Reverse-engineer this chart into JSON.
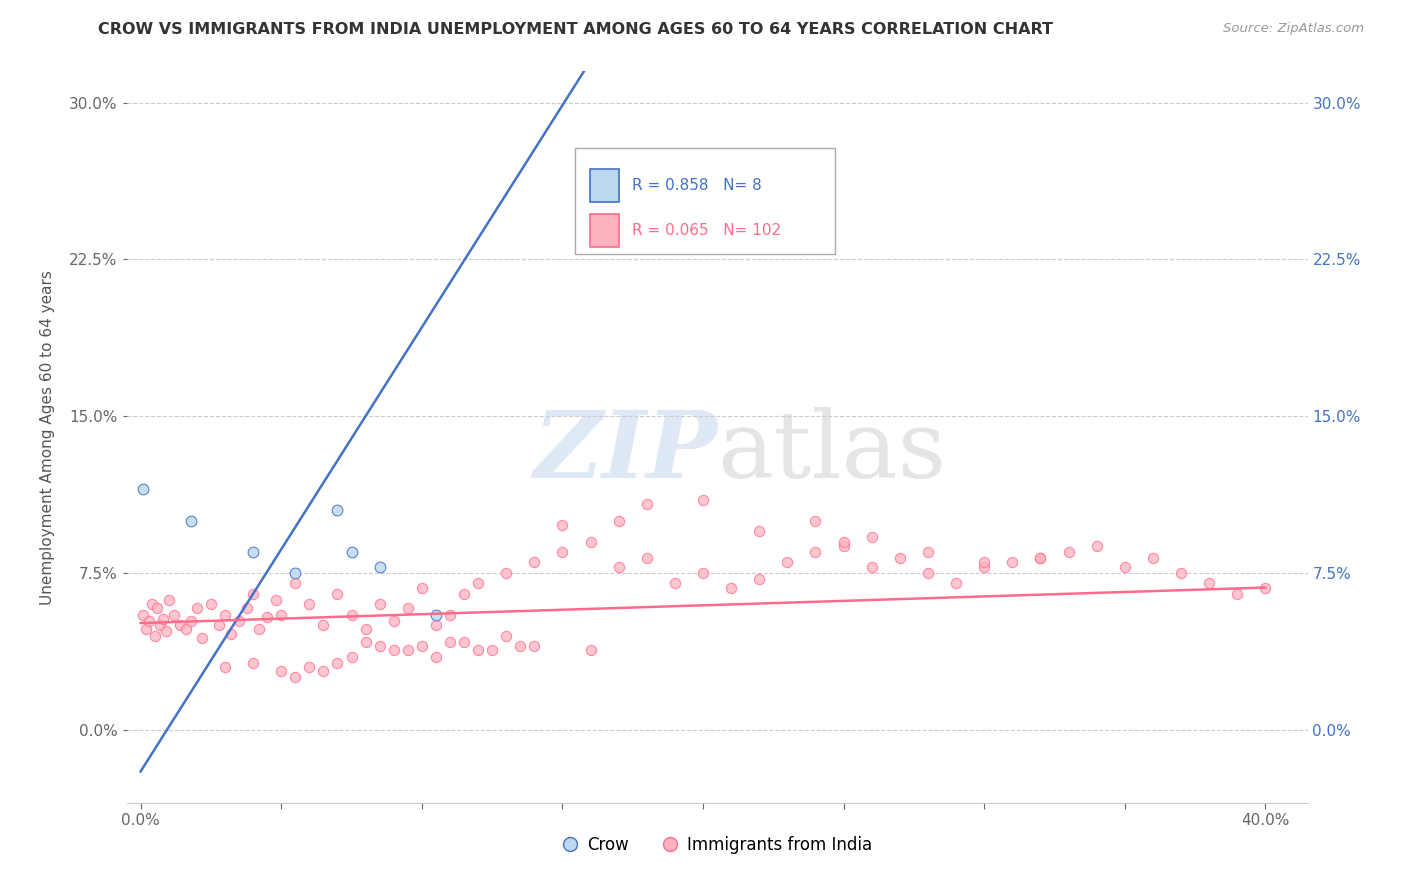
{
  "title": "CROW VS IMMIGRANTS FROM INDIA UNEMPLOYMENT AMONG AGES 60 TO 64 YEARS CORRELATION CHART",
  "source": "Source: ZipAtlas.com",
  "ylabel": "Unemployment Among Ages 60 to 64 years",
  "crow_R": "0.858",
  "crow_N": "8",
  "india_R": "0.065",
  "india_N": "102",
  "crow_color": "#4472C4",
  "crow_fill": "#BDD7EE",
  "india_color": "#FF6B8A",
  "india_fill": "#FFB3C1",
  "background_color": "#FFFFFF",
  "crow_scatter_x": [
    0.001,
    0.018,
    0.04,
    0.055,
    0.07,
    0.075,
    0.085,
    0.105
  ],
  "crow_scatter_y": [
    0.115,
    0.1,
    0.085,
    0.075,
    0.105,
    0.085,
    0.078,
    0.055
  ],
  "crow_line_x": [
    0.0,
    0.16
  ],
  "crow_line_y": [
    -0.02,
    0.32
  ],
  "india_line_x": [
    0.0,
    0.4
  ],
  "india_line_y": [
    0.051,
    0.068
  ],
  "india_scatter_x": [
    0.001,
    0.002,
    0.003,
    0.004,
    0.005,
    0.006,
    0.007,
    0.008,
    0.009,
    0.01,
    0.012,
    0.014,
    0.016,
    0.018,
    0.02,
    0.022,
    0.025,
    0.028,
    0.03,
    0.032,
    0.035,
    0.038,
    0.04,
    0.042,
    0.045,
    0.048,
    0.05,
    0.055,
    0.06,
    0.065,
    0.07,
    0.075,
    0.08,
    0.085,
    0.09,
    0.095,
    0.1,
    0.105,
    0.11,
    0.115,
    0.12,
    0.13,
    0.14,
    0.15,
    0.16,
    0.17,
    0.18,
    0.19,
    0.2,
    0.21,
    0.22,
    0.23,
    0.24,
    0.25,
    0.26,
    0.27,
    0.28,
    0.29,
    0.3,
    0.31,
    0.32,
    0.33,
    0.34,
    0.35,
    0.36,
    0.37,
    0.38,
    0.39,
    0.4,
    0.22,
    0.24,
    0.26,
    0.18,
    0.2,
    0.15,
    0.17,
    0.25,
    0.28,
    0.3,
    0.32,
    0.08,
    0.09,
    0.1,
    0.11,
    0.12,
    0.13,
    0.14,
    0.16,
    0.03,
    0.04,
    0.05,
    0.06,
    0.07,
    0.055,
    0.065,
    0.075,
    0.085,
    0.095,
    0.105,
    0.115,
    0.125,
    0.135
  ],
  "india_scatter_y": [
    0.055,
    0.048,
    0.052,
    0.06,
    0.045,
    0.058,
    0.05,
    0.053,
    0.047,
    0.062,
    0.055,
    0.05,
    0.048,
    0.052,
    0.058,
    0.044,
    0.06,
    0.05,
    0.055,
    0.046,
    0.052,
    0.058,
    0.065,
    0.048,
    0.054,
    0.062,
    0.055,
    0.07,
    0.06,
    0.05,
    0.065,
    0.055,
    0.048,
    0.06,
    0.052,
    0.058,
    0.068,
    0.05,
    0.055,
    0.065,
    0.07,
    0.075,
    0.08,
    0.085,
    0.09,
    0.078,
    0.082,
    0.07,
    0.075,
    0.068,
    0.072,
    0.08,
    0.085,
    0.088,
    0.078,
    0.082,
    0.075,
    0.07,
    0.078,
    0.08,
    0.082,
    0.085,
    0.088,
    0.078,
    0.082,
    0.075,
    0.07,
    0.065,
    0.068,
    0.095,
    0.1,
    0.092,
    0.108,
    0.11,
    0.098,
    0.1,
    0.09,
    0.085,
    0.08,
    0.082,
    0.042,
    0.038,
    0.04,
    0.042,
    0.038,
    0.045,
    0.04,
    0.038,
    0.03,
    0.032,
    0.028,
    0.03,
    0.032,
    0.025,
    0.028,
    0.035,
    0.04,
    0.038,
    0.035,
    0.042,
    0.038,
    0.04
  ],
  "xlim": [
    -0.005,
    0.415
  ],
  "ylim": [
    -0.035,
    0.315
  ],
  "yticks": [
    0.0,
    0.075,
    0.15,
    0.225,
    0.3
  ],
  "xtick_labels_shown": [
    "0.0%",
    "40.0%"
  ],
  "legend_crow_label": "Crow",
  "legend_india_label": "Immigrants from India"
}
